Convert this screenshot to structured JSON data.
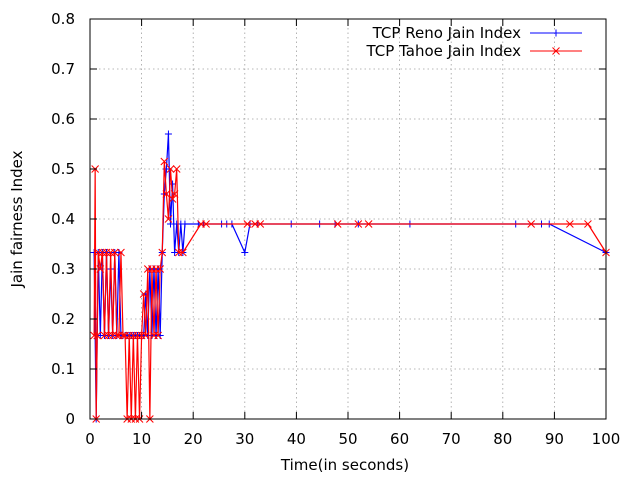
{
  "chart_data": {
    "type": "line",
    "xlabel": "Time(in seconds)",
    "ylabel": "Jain fairness Index",
    "xlim": [
      0,
      100
    ],
    "ylim": [
      0,
      0.8
    ],
    "xticks": [
      "0",
      "10",
      "20",
      "30",
      "40",
      "50",
      "60",
      "70",
      "80",
      "90",
      "100"
    ],
    "yticks": [
      "0",
      "0.1",
      "0.2",
      "0.3",
      "0.4",
      "0.5",
      "0.6",
      "0.7",
      "0.8"
    ],
    "grid": true,
    "legend_position": "top-right",
    "series": [
      {
        "name": "TCP Reno Jain Index",
        "color": "#0000ff",
        "marker": "plus",
        "x": [
          0.8,
          1.2,
          1.6,
          2.0,
          2.4,
          2.8,
          3.2,
          3.6,
          4.0,
          4.4,
          4.8,
          5.2,
          5.6,
          6.0,
          6.4,
          6.8,
          7.2,
          7.6,
          8.0,
          8.4,
          8.8,
          9.2,
          9.6,
          10.0,
          10.4,
          10.8,
          11.2,
          11.6,
          12.0,
          12.4,
          12.8,
          13.2,
          13.6,
          14.0,
          14.4,
          14.8,
          15.2,
          15.6,
          16.0,
          16.4,
          16.8,
          17.2,
          17.6,
          18.0,
          18.4,
          21.0,
          22.0,
          25.5,
          26.5,
          27.5,
          30.0,
          31.0,
          32.5,
          39.0,
          44.5,
          47.5,
          52.0,
          62.0,
          82.5,
          87.5,
          89.0,
          100.0
        ],
        "y": [
          0.333,
          0,
          0.333,
          0.167,
          0.333,
          0.167,
          0.333,
          0.167,
          0.3,
          0.167,
          0.333,
          0.167,
          0.333,
          0.167,
          0.167,
          0.167,
          0.167,
          0.167,
          0.167,
          0.167,
          0.167,
          0.167,
          0.167,
          0.167,
          0.167,
          0.25,
          0.167,
          0.3,
          0.167,
          0.3,
          0.167,
          0.3,
          0.167,
          0.333,
          0.45,
          0.5,
          0.57,
          0.39,
          0.47,
          0.333,
          0.39,
          0.333,
          0.39,
          0.333,
          0.39,
          0.39,
          0.39,
          0.39,
          0.39,
          0.39,
          0.333,
          0.39,
          0.39,
          0.39,
          0.39,
          0.39,
          0.39,
          0.39,
          0.39,
          0.39,
          0.39,
          0.333
        ]
      },
      {
        "name": "TCP Tahoe Jain Index",
        "color": "#ff0000",
        "marker": "cross",
        "x": [
          0.8,
          1.0,
          1.2,
          1.4,
          1.6,
          2.0,
          2.4,
          2.8,
          3.2,
          3.6,
          4.0,
          4.4,
          4.8,
          5.2,
          5.6,
          6.0,
          6.4,
          6.8,
          7.2,
          7.6,
          8.0,
          8.4,
          8.8,
          9.2,
          9.6,
          10.0,
          10.4,
          10.8,
          11.2,
          11.6,
          12.0,
          12.4,
          12.8,
          13.2,
          13.6,
          14.0,
          14.4,
          14.8,
          15.2,
          15.6,
          16.0,
          16.4,
          16.8,
          17.2,
          18.0,
          21.5,
          22.5,
          30.5,
          32.0,
          33.0,
          48.0,
          52.0,
          54.0,
          85.5,
          93.0,
          96.5,
          100.0
        ],
        "y": [
          0.167,
          0.5,
          0,
          0.167,
          0.333,
          0.3,
          0.333,
          0.167,
          0.333,
          0.167,
          0.333,
          0.167,
          0.333,
          0.167,
          0.167,
          0.333,
          0.167,
          0.167,
          0,
          0.167,
          0,
          0.167,
          0,
          0.167,
          0,
          0.167,
          0.25,
          0.167,
          0.3,
          0,
          0.3,
          0.167,
          0.3,
          0.167,
          0.3,
          0.333,
          0.515,
          0.45,
          0.4,
          0.5,
          0.44,
          0.45,
          0.5,
          0.333,
          0.333,
          0.39,
          0.39,
          0.39,
          0.39,
          0.39,
          0.39,
          0.39,
          0.39,
          0.39,
          0.39,
          0.39,
          0.333
        ]
      }
    ]
  }
}
